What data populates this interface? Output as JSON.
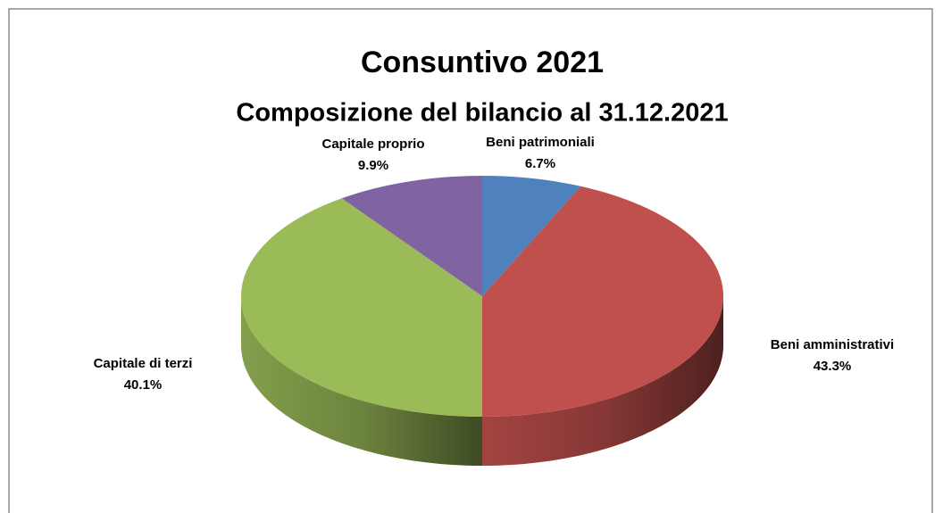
{
  "chart_data": {
    "type": "pie3d",
    "title": "Consuntivo 2021",
    "subtitle": "Composizione del bilancio al 31.12.2021",
    "categories": [
      "Beni patrimoniali",
      "Beni amministrativi",
      "Capitale di terzi",
      "Capitale proprio"
    ],
    "values": [
      6.7,
      43.3,
      40.1,
      9.9
    ],
    "value_labels": [
      "6.7%",
      "43.3%",
      "40.1%",
      "9.9%"
    ],
    "colors": [
      "#4f81bd",
      "#c0504d",
      "#9bbb59",
      "#8064a2"
    ]
  }
}
